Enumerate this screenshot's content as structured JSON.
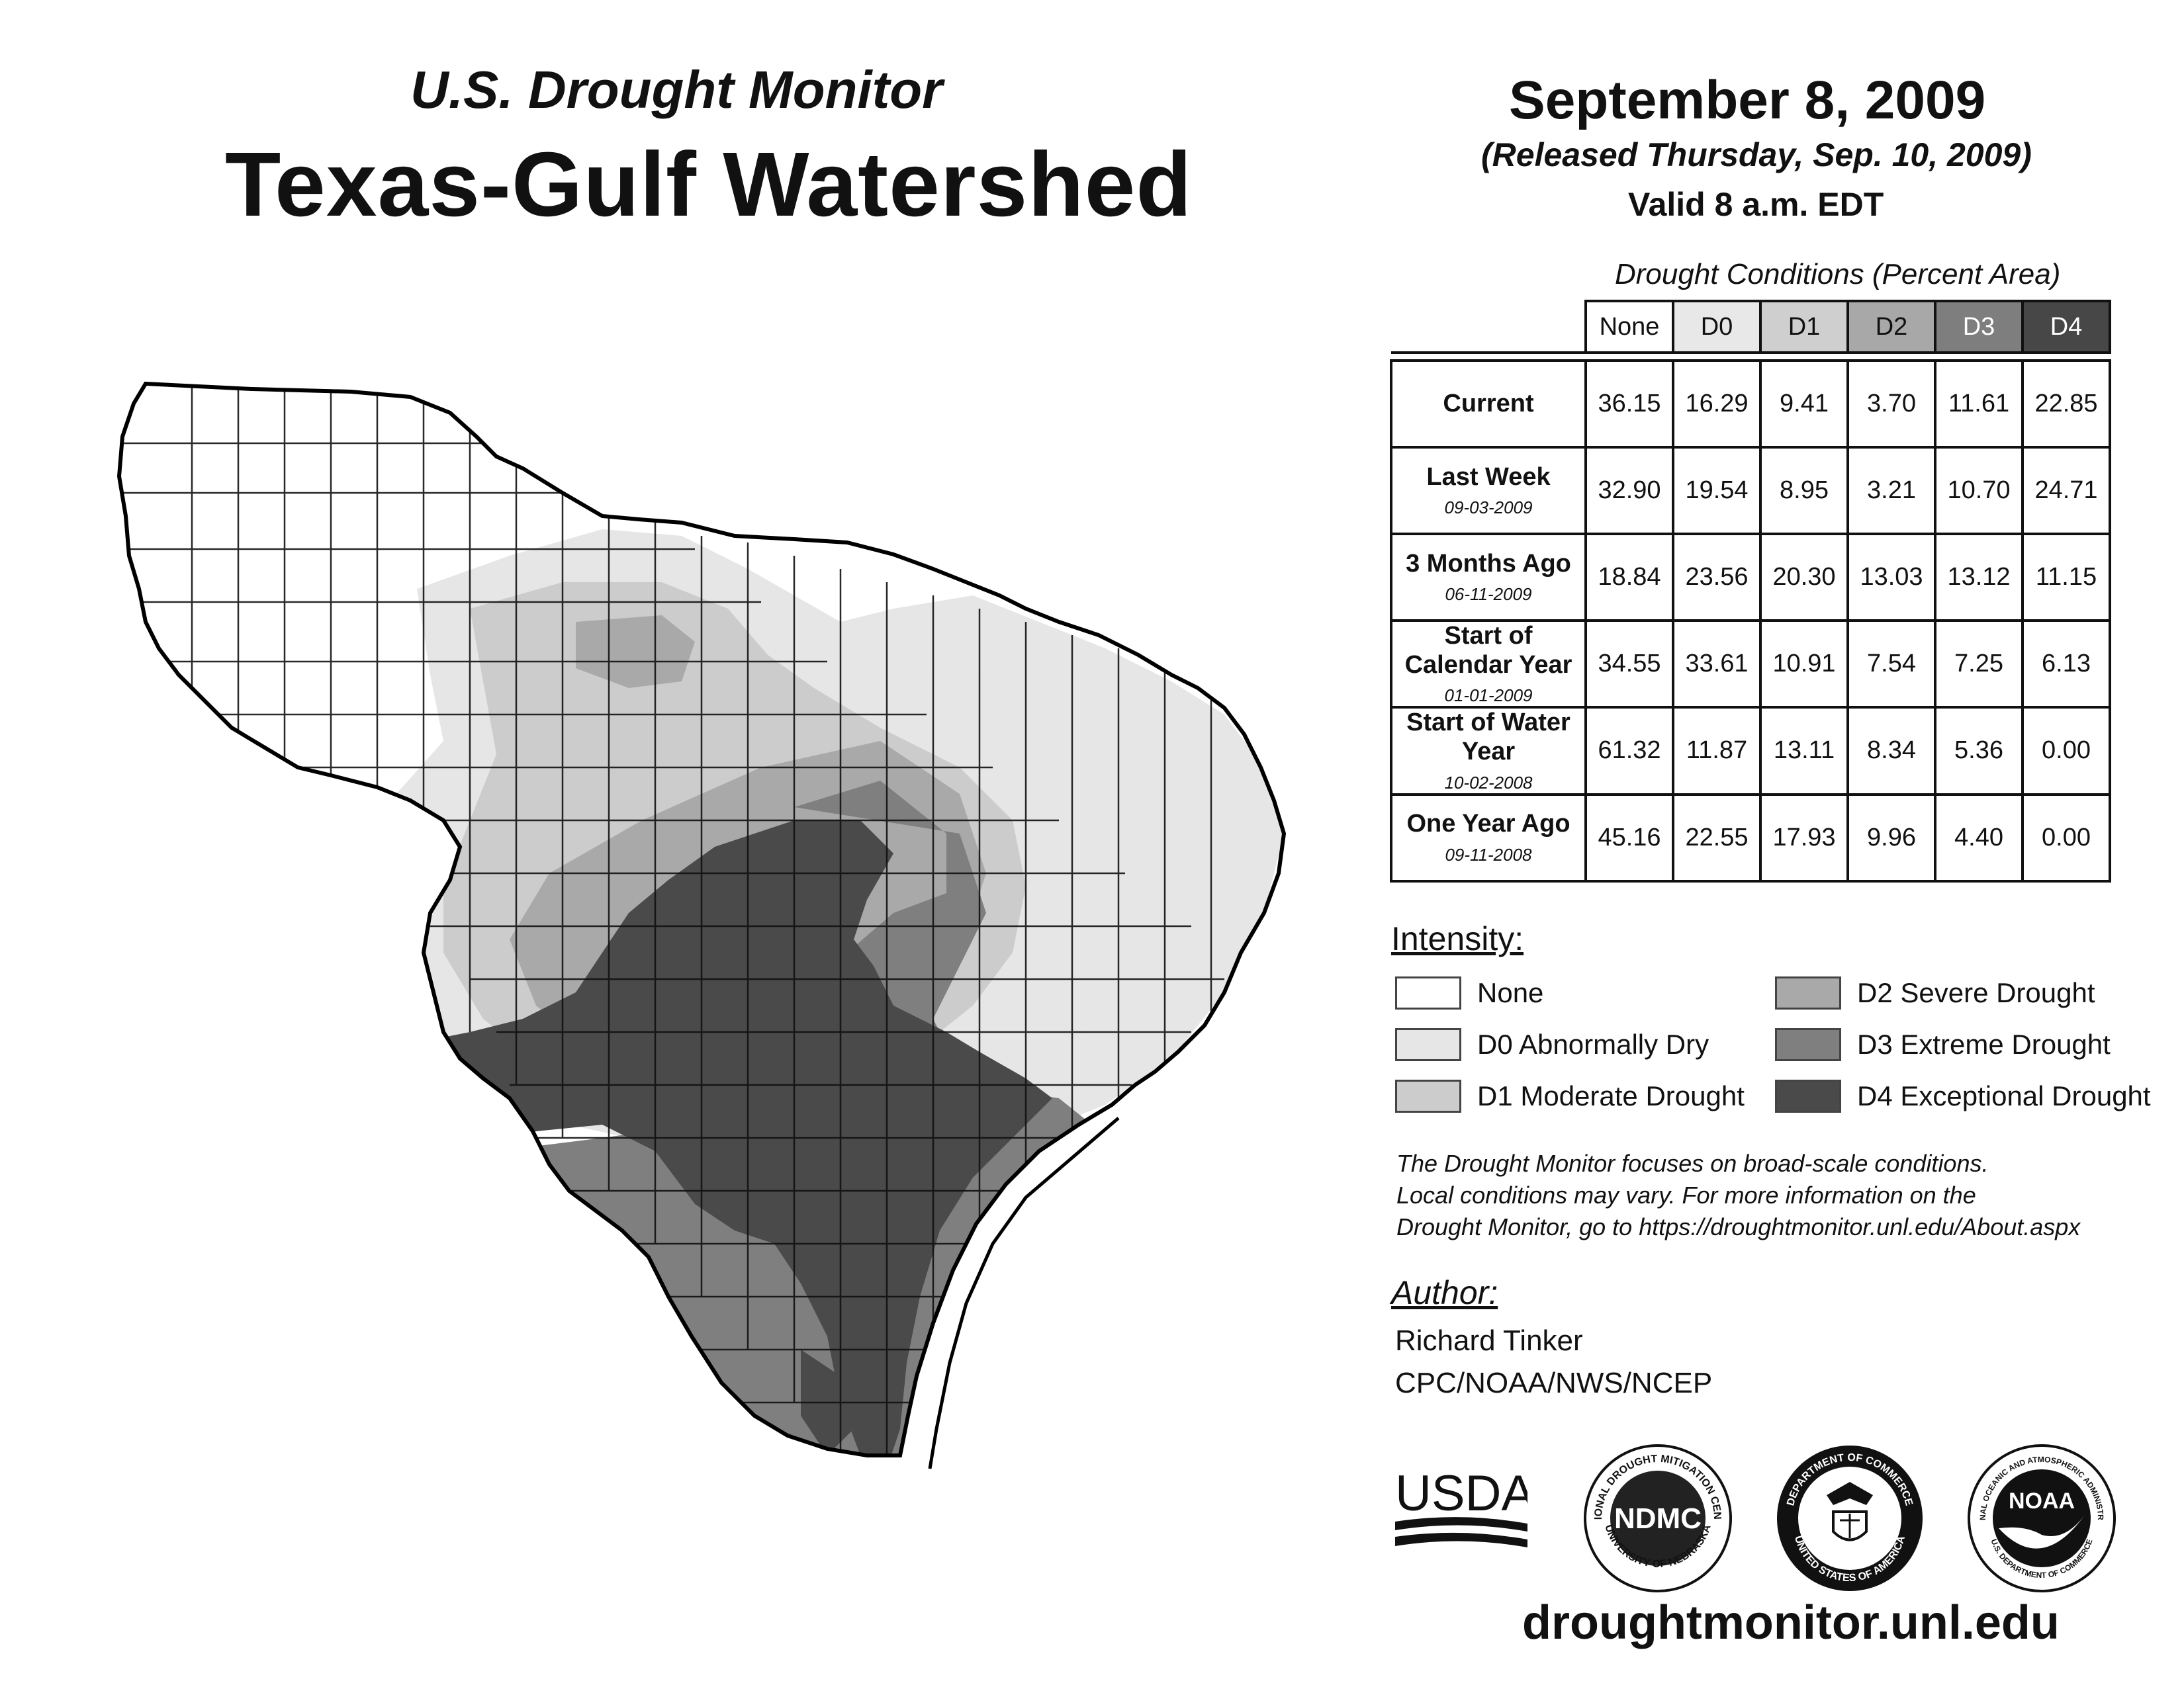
{
  "header": {
    "subtitle": "U.S. Drought Monitor",
    "title": "Texas-Gulf Watershed",
    "date": "September 8, 2009",
    "released": "(Released Thursday, Sep. 10, 2009)",
    "valid": "Valid 8 a.m. EDT"
  },
  "conditions_table": {
    "title": "Drought Conditions (Percent Area)",
    "columns": [
      "None",
      "D0",
      "D1",
      "D2",
      "D3",
      "D4"
    ],
    "rows": [
      {
        "label": "Current",
        "date": "",
        "values": [
          "36.15",
          "16.29",
          "9.41",
          "3.70",
          "11.61",
          "22.85"
        ]
      },
      {
        "label": "Last Week",
        "date": "09-03-2009",
        "values": [
          "32.90",
          "19.54",
          "8.95",
          "3.21",
          "10.70",
          "24.71"
        ]
      },
      {
        "label": "3 Months Ago",
        "date": "06-11-2009",
        "values": [
          "18.84",
          "23.56",
          "20.30",
          "13.03",
          "13.12",
          "11.15"
        ]
      },
      {
        "label": "Start of Calendar Year",
        "date": "01-01-2009",
        "values": [
          "34.55",
          "33.61",
          "10.91",
          "7.54",
          "7.25",
          "6.13"
        ]
      },
      {
        "label": "Start of Water Year",
        "date": "10-02-2008",
        "values": [
          "61.32",
          "11.87",
          "13.11",
          "8.34",
          "5.36",
          "0.00"
        ]
      },
      {
        "label": "One Year Ago",
        "date": "09-11-2008",
        "values": [
          "45.16",
          "22.55",
          "17.93",
          "9.96",
          "4.40",
          "0.00"
        ]
      }
    ]
  },
  "legend": {
    "heading": "Intensity:",
    "items": [
      {
        "label": "None",
        "color": "#ffffff"
      },
      {
        "label": "D0 Abnormally Dry",
        "color": "#e6e6e6"
      },
      {
        "label": "D1 Moderate Drought",
        "color": "#cccccc"
      },
      {
        "label": "D2 Severe Drought",
        "color": "#a9a9a9"
      },
      {
        "label": "D3 Extreme Drought",
        "color": "#7f7f7f"
      },
      {
        "label": "D4 Exceptional Drought",
        "color": "#4a4a4a"
      }
    ]
  },
  "note": {
    "line1": "The Drought Monitor focuses on broad-scale conditions.",
    "line2": "Local conditions may vary. For more information on the",
    "line3": "Drought Monitor, go to https://droughtmonitor.unl.edu/About.aspx"
  },
  "author": {
    "heading": "Author:",
    "name": "Richard Tinker",
    "org": "CPC/NOAA/NWS/NCEP"
  },
  "logos": {
    "usda": "USDA",
    "ndmc": "NDMC",
    "ndmc_ring_top": "NATIONAL DROUGHT MITIGATION CENTER",
    "ndmc_ring_bottom": "UNIVERSITY OF NEBRASKA",
    "doc_ring_top": "DEPARTMENT OF COMMERCE",
    "doc_ring_bottom": "UNITED STATES OF AMERICA",
    "noaa": "NOAA",
    "noaa_ring_top": "NATIONAL OCEANIC AND ATMOSPHERIC ADMINISTRATION",
    "noaa_ring_bottom": "U.S. DEPARTMENT OF COMMERCE"
  },
  "footer": {
    "site": "droughtmonitor.unl.edu"
  }
}
